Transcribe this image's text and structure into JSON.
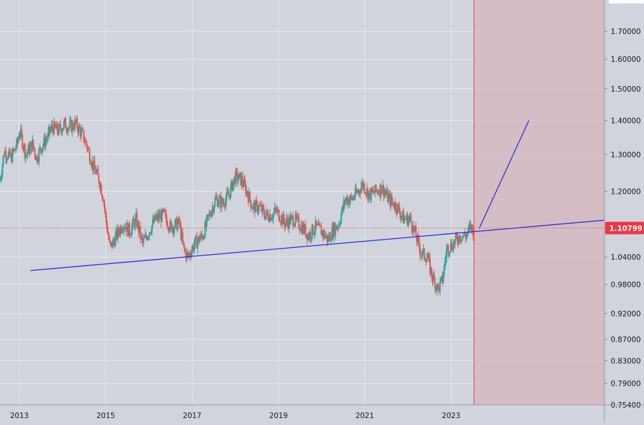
{
  "chart_data": {
    "type": "candlestick",
    "instrument_note": "",
    "x_ticks": [
      "2013",
      "2015",
      "2017",
      "2019",
      "2021",
      "2023"
    ],
    "y_ticks": [
      "1.70000",
      "1.60000",
      "1.50000",
      "1.40000",
      "1.30000",
      "1.20000",
      "1.04000",
      "0.98000",
      "0.92000",
      "0.87000",
      "0.83000",
      "0.79000",
      "0.75400"
    ],
    "y_scale": "log",
    "ylim": [
      0.754,
      1.82
    ],
    "xlim": [
      2012.6,
      2026.6
    ],
    "last_price": "1.10799",
    "last_price_value": 1.10799,
    "price_path": [
      [
        2012.6,
        1.23
      ],
      [
        2012.7,
        1.31
      ],
      [
        2012.85,
        1.29
      ],
      [
        2013.0,
        1.33
      ],
      [
        2013.05,
        1.37
      ],
      [
        2013.2,
        1.3
      ],
      [
        2013.35,
        1.33
      ],
      [
        2013.45,
        1.29
      ],
      [
        2013.55,
        1.32
      ],
      [
        2013.7,
        1.35
      ],
      [
        2013.8,
        1.38
      ],
      [
        2013.95,
        1.37
      ],
      [
        2014.1,
        1.39
      ],
      [
        2014.2,
        1.38
      ],
      [
        2014.35,
        1.39
      ],
      [
        2014.5,
        1.36
      ],
      [
        2014.6,
        1.33
      ],
      [
        2014.75,
        1.27
      ],
      [
        2014.9,
        1.23
      ],
      [
        2015.0,
        1.18
      ],
      [
        2015.05,
        1.13
      ],
      [
        2015.15,
        1.06
      ],
      [
        2015.3,
        1.09
      ],
      [
        2015.45,
        1.12
      ],
      [
        2015.6,
        1.1
      ],
      [
        2015.75,
        1.13
      ],
      [
        2015.9,
        1.07
      ],
      [
        2016.0,
        1.09
      ],
      [
        2016.2,
        1.13
      ],
      [
        2016.4,
        1.14
      ],
      [
        2016.55,
        1.11
      ],
      [
        2016.75,
        1.12
      ],
      [
        2016.85,
        1.06
      ],
      [
        2016.95,
        1.04
      ],
      [
        2017.1,
        1.07
      ],
      [
        2017.3,
        1.09
      ],
      [
        2017.45,
        1.14
      ],
      [
        2017.6,
        1.18
      ],
      [
        2017.75,
        1.17
      ],
      [
        2017.9,
        1.19
      ],
      [
        2018.05,
        1.24
      ],
      [
        2018.2,
        1.23
      ],
      [
        2018.35,
        1.19
      ],
      [
        2018.45,
        1.16
      ],
      [
        2018.6,
        1.16
      ],
      [
        2018.75,
        1.14
      ],
      [
        2018.9,
        1.14
      ],
      [
        2019.0,
        1.15
      ],
      [
        2019.2,
        1.12
      ],
      [
        2019.4,
        1.13
      ],
      [
        2019.6,
        1.11
      ],
      [
        2019.75,
        1.09
      ],
      [
        2019.9,
        1.11
      ],
      [
        2020.05,
        1.1
      ],
      [
        2020.2,
        1.08
      ],
      [
        2020.3,
        1.1
      ],
      [
        2020.45,
        1.12
      ],
      [
        2020.6,
        1.18
      ],
      [
        2020.75,
        1.18
      ],
      [
        2020.9,
        1.2
      ],
      [
        2021.0,
        1.22
      ],
      [
        2021.15,
        1.19
      ],
      [
        2021.3,
        1.2
      ],
      [
        2021.45,
        1.21
      ],
      [
        2021.6,
        1.18
      ],
      [
        2021.8,
        1.16
      ],
      [
        2021.95,
        1.13
      ],
      [
        2022.1,
        1.13
      ],
      [
        2022.2,
        1.1
      ],
      [
        2022.35,
        1.05
      ],
      [
        2022.5,
        1.04
      ],
      [
        2022.6,
        1.0
      ],
      [
        2022.75,
        0.97
      ],
      [
        2022.85,
        0.99
      ],
      [
        2022.95,
        1.06
      ],
      [
        2023.1,
        1.07
      ],
      [
        2023.25,
        1.09
      ],
      [
        2023.4,
        1.09
      ],
      [
        2023.5,
        1.11
      ],
      [
        2023.58,
        1.1
      ]
    ],
    "annotations": {
      "support_line": {
        "from": [
          2013.3,
          1.01
        ],
        "to": [
          2026.6,
          1.127
        ]
      },
      "projection_line": {
        "from": [
          2023.7,
          1.107
        ],
        "to": [
          2024.85,
          1.4
        ]
      },
      "forecast_zone_start_x": 2023.58,
      "price_line_style": "dotted",
      "colors": {
        "support": "#2a2ae0",
        "projection": "#3333d6",
        "zone_fill": "#d6b8c2",
        "zone_edge": "#f23645",
        "up": "#26a69a",
        "down": "#ef5350",
        "price_label_bg": "#f23645",
        "background": "#d1d4dc",
        "grid": "#e6e8ee"
      }
    }
  }
}
